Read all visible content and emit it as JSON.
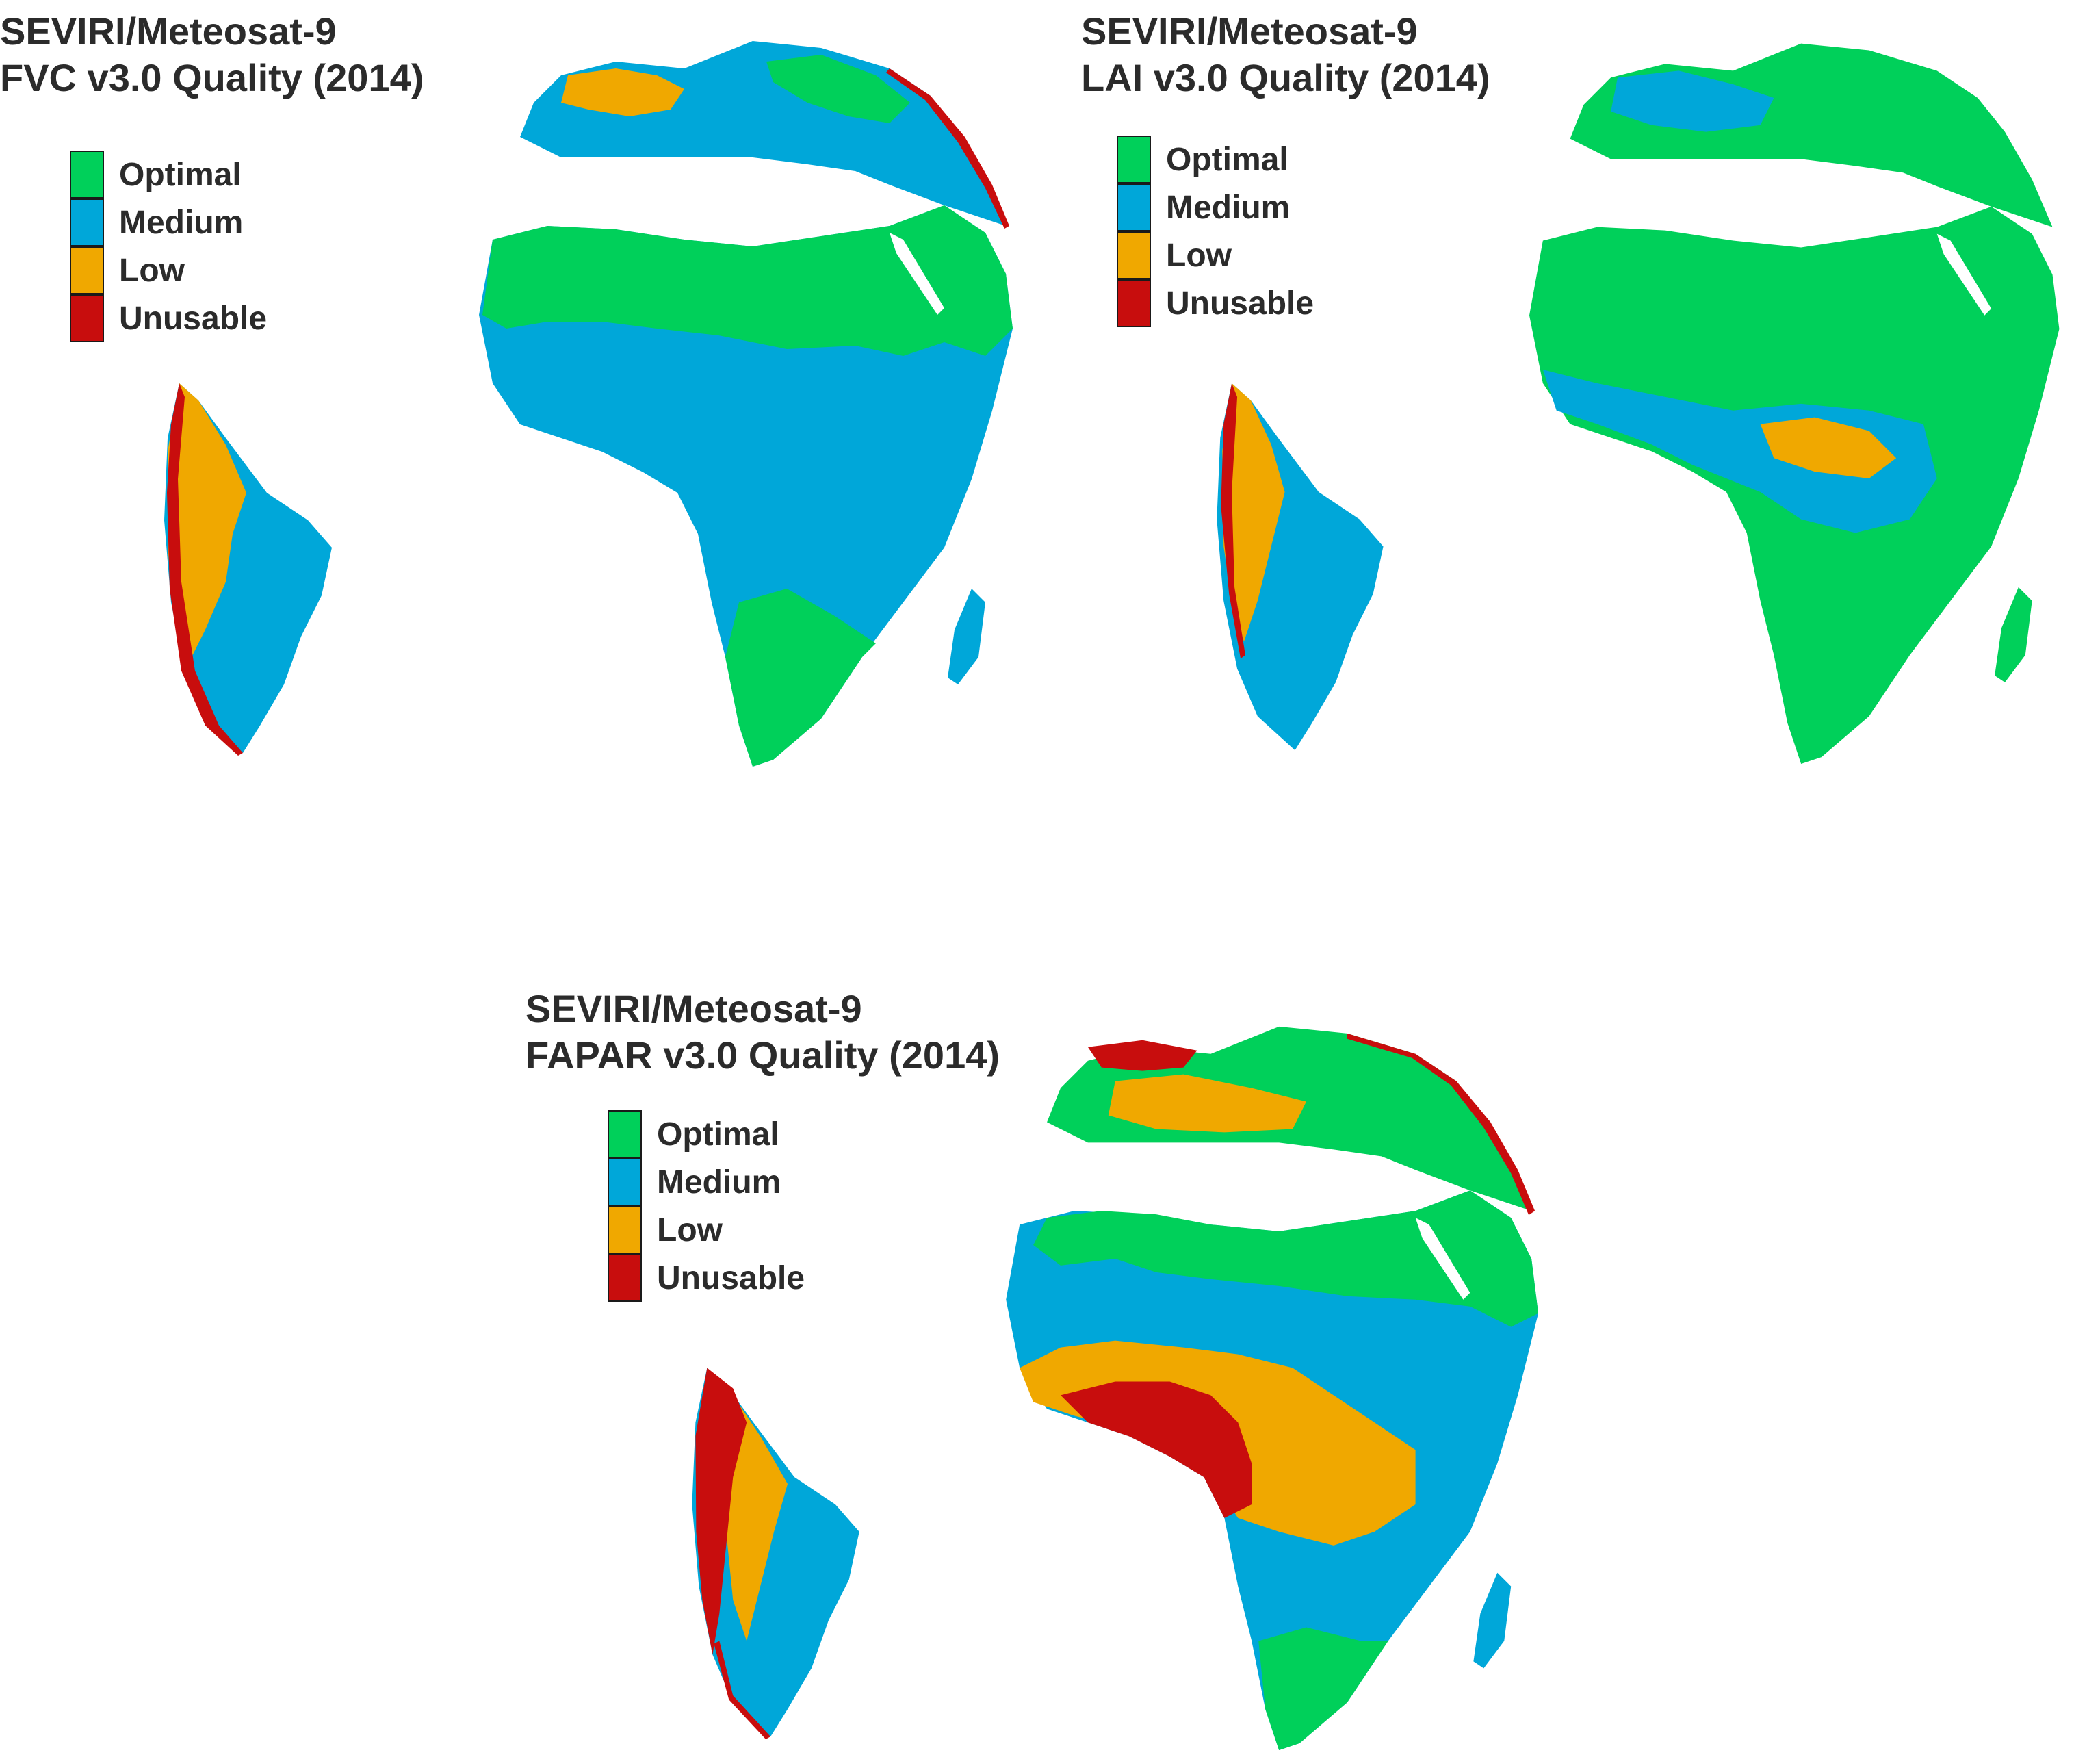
{
  "colors": {
    "optimal": "#00d05a",
    "medium": "#00a7d9",
    "low": "#f0a800",
    "unusable": "#c80d0d"
  },
  "panels": [
    {
      "title_line1": "SEVIRI/Meteosat-9",
      "title_line2": "FVC v3.0  Quality (2014)",
      "legend": [
        "Optimal",
        "Medium",
        "Low",
        "Unusable"
      ]
    },
    {
      "title_line1": "SEVIRI/Meteosat-9",
      "title_line2": "LAI v3.0  Quality (2014)",
      "legend": [
        "Optimal",
        "Medium",
        "Low",
        "Unusable"
      ]
    },
    {
      "title_line1": "SEVIRI/Meteosat-9",
      "title_line2": "FAPAR v3.0  Quality (2014)",
      "legend": [
        "Optimal",
        "Medium",
        "Low",
        "Unusable"
      ]
    }
  ]
}
